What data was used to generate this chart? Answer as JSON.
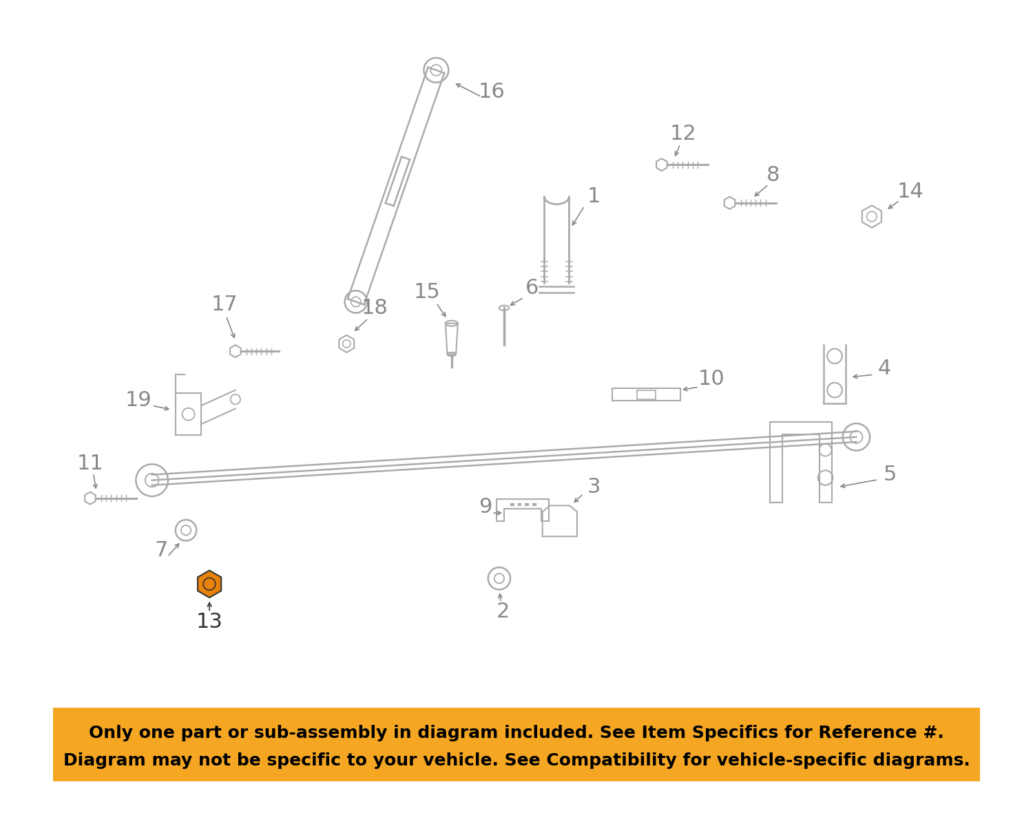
{
  "bg_color": "#ffffff",
  "line_color": "#aaaaaa",
  "number_color": "#888888",
  "highlight_color": "#e8830a",
  "banner_color": "#f5a623",
  "banner_text_color": "#000000",
  "banner_fontsize": 18,
  "number_fontsize": 22,
  "fig_width": 15.0,
  "fig_height": 11.97
}
